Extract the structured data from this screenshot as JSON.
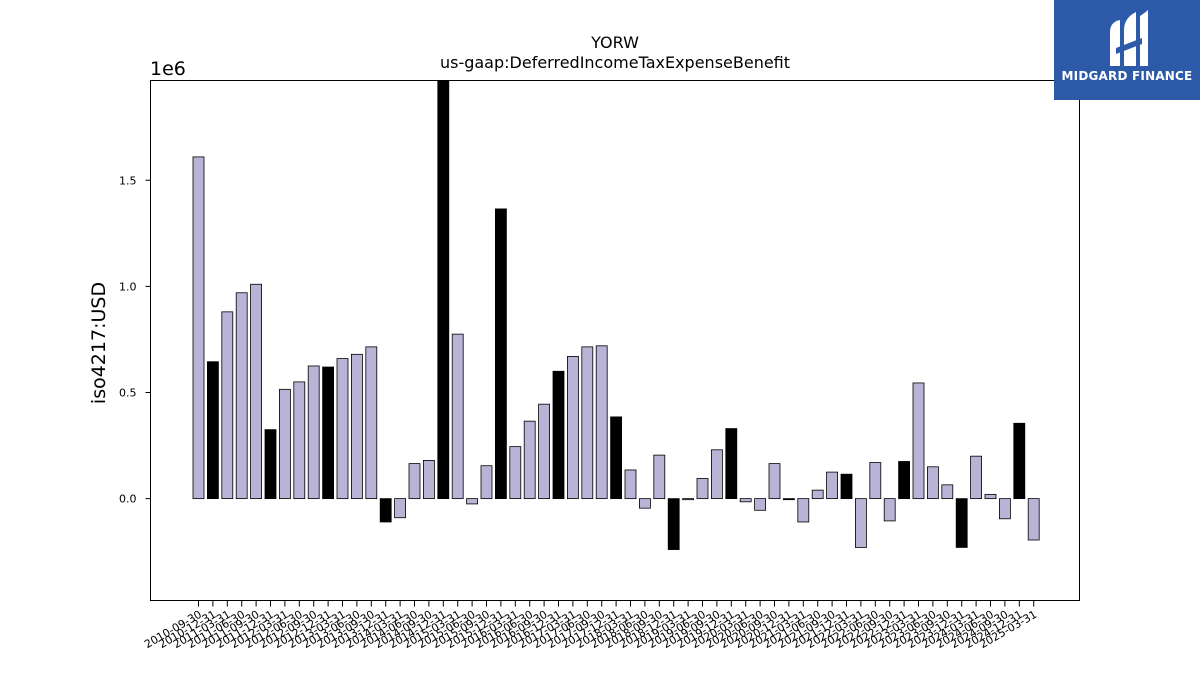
{
  "brand": {
    "name": "MIDGARD FINANCE",
    "logo_icon": "midgard-logo-icon",
    "color": "#2d5aa8"
  },
  "chart_data": {
    "type": "bar",
    "title": "YORW",
    "subtitle": "us-gaap:DeferredIncomeTaxExpenseBenefit",
    "ylabel": "iso4217:USD",
    "xlabel": "",
    "y_multiplier": "1e6",
    "ylim": [
      -0.48,
      1.97
    ],
    "yticks": [
      "0.0",
      "0.5",
      "1.0",
      "1.5"
    ],
    "ytick_values": [
      0.0,
      0.5,
      1.0,
      1.5
    ],
    "grid": false,
    "legend": "none",
    "colors": {
      "regular": "#b8b4d6",
      "highlight": "#000000",
      "edge": "#000000"
    },
    "categories": [
      "2010-09-30",
      "2010-12-31",
      "2011-03-31",
      "2011-06-30",
      "2011-09-30",
      "2011-12-31",
      "2012-03-31",
      "2012-06-30",
      "2012-09-30",
      "2012-12-31",
      "2013-03-31",
      "2013-06-30",
      "2013-09-30",
      "2013-12-31",
      "2014-03-31",
      "2014-06-30",
      "2014-09-30",
      "2014-12-31",
      "2015-03-31",
      "2015-06-30",
      "2015-09-30",
      "2015-12-31",
      "2016-03-31",
      "2016-06-30",
      "2016-09-30",
      "2016-12-31",
      "2017-03-31",
      "2017-06-30",
      "2017-09-30",
      "2017-12-31",
      "2018-03-31",
      "2018-06-30",
      "2018-09-30",
      "2018-12-31",
      "2019-03-31",
      "2019-06-30",
      "2019-09-30",
      "2019-12-31",
      "2020-03-31",
      "2020-06-30",
      "2020-09-30",
      "2020-12-31",
      "2021-03-31",
      "2021-06-30",
      "2021-09-30",
      "2021-12-31",
      "2022-03-31",
      "2022-06-30",
      "2022-09-30",
      "2022-12-31",
      "2023-03-31",
      "2023-06-30",
      "2023-09-30",
      "2023-12-31",
      "2024-03-31",
      "2024-06-30",
      "2024-09-30",
      "2024-12-31",
      "2025-03-31"
    ],
    "values": [
      1.61,
      0.645,
      0.88,
      0.97,
      1.01,
      0.325,
      0.515,
      0.55,
      0.625,
      0.62,
      0.66,
      0.68,
      0.715,
      -0.11,
      -0.09,
      0.165,
      0.18,
      1.97,
      0.775,
      -0.025,
      0.155,
      1.365,
      0.245,
      0.365,
      0.445,
      0.6,
      0.67,
      0.715,
      0.72,
      0.385,
      0.135,
      -0.045,
      0.205,
      -0.24,
      -0.005,
      0.095,
      0.23,
      0.33,
      -0.015,
      -0.055,
      0.165,
      -0.005,
      -0.11,
      0.04,
      0.125,
      0.115,
      -0.23,
      0.17,
      -0.105,
      0.175,
      0.545,
      0.15,
      0.065,
      -0.23,
      0.2,
      0.02,
      -0.095,
      0.355,
      -0.195
    ],
    "highlight": [
      false,
      true,
      false,
      false,
      false,
      true,
      false,
      false,
      false,
      true,
      false,
      false,
      false,
      true,
      false,
      false,
      false,
      true,
      false,
      false,
      false,
      true,
      false,
      false,
      false,
      true,
      false,
      false,
      false,
      true,
      false,
      false,
      false,
      true,
      false,
      false,
      false,
      true,
      false,
      false,
      false,
      true,
      false,
      false,
      false,
      true,
      false,
      false,
      false,
      true,
      false,
      false,
      false,
      true,
      false,
      false,
      false,
      true,
      false
    ]
  }
}
